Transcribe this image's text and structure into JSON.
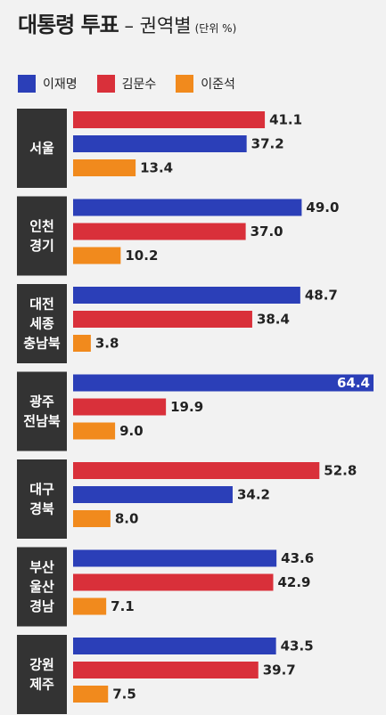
{
  "header": {
    "title_main": "대통령 투표",
    "title_dash": " – ",
    "title_sub": "권역별",
    "unit": "(단위 %)"
  },
  "chart_data": {
    "type": "bar",
    "orientation": "horizontal",
    "title": "대통령 투표 – 권역별",
    "unit": "(단위 %)",
    "legend_placement": "top-left",
    "series": [
      {
        "name": "이재명",
        "color": "#2b3fb8"
      },
      {
        "name": "김문수",
        "color": "#d9303a"
      },
      {
        "name": "이준석",
        "color": "#f18a1d"
      }
    ],
    "groups": [
      {
        "region": [
          "서울"
        ],
        "bars": [
          {
            "series": "김문수",
            "value": 41.1
          },
          {
            "series": "이재명",
            "value": 37.2
          },
          {
            "series": "이준석",
            "value": 13.4
          }
        ]
      },
      {
        "region": [
          "인천",
          "경기"
        ],
        "bars": [
          {
            "series": "이재명",
            "value": 49.0
          },
          {
            "series": "김문수",
            "value": 37.0
          },
          {
            "series": "이준석",
            "value": 10.2
          }
        ]
      },
      {
        "region": [
          "대전",
          "세종",
          "충남북"
        ],
        "bars": [
          {
            "series": "이재명",
            "value": 48.7
          },
          {
            "series": "김문수",
            "value": 38.4
          },
          {
            "series": "이준석",
            "value": 3.8
          }
        ]
      },
      {
        "region": [
          "광주",
          "전남북"
        ],
        "bars": [
          {
            "series": "이재명",
            "value": 64.4
          },
          {
            "series": "김문수",
            "value": 19.9
          },
          {
            "series": "이준석",
            "value": 9.0
          }
        ]
      },
      {
        "region": [
          "대구",
          "경북"
        ],
        "bars": [
          {
            "series": "김문수",
            "value": 52.8
          },
          {
            "series": "이재명",
            "value": 34.2
          },
          {
            "series": "이준석",
            "value": 8.0
          }
        ]
      },
      {
        "region": [
          "부산",
          "울산",
          "경남"
        ],
        "bars": [
          {
            "series": "이재명",
            "value": 43.6
          },
          {
            "series": "김문수",
            "value": 42.9
          },
          {
            "series": "이준석",
            "value": 7.1
          }
        ]
      },
      {
        "region": [
          "강원",
          "제주"
        ],
        "bars": [
          {
            "series": "이재명",
            "value": 43.5
          },
          {
            "series": "김문수",
            "value": 39.7
          },
          {
            "series": "이준석",
            "value": 7.5
          }
        ]
      }
    ]
  }
}
